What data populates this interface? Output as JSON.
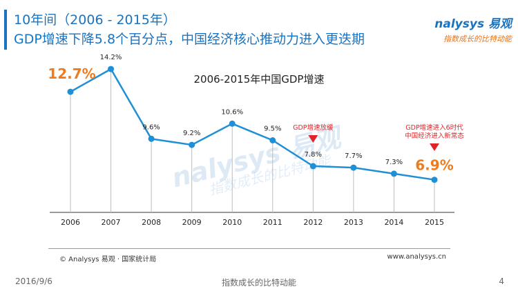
{
  "header": {
    "title_line1": "10年间（2006 - 2015年）",
    "title_line2": "GDP增速下降5.8个百分点，中国经济核心推动力进入更迭期",
    "logo_main": "nalysys 易观",
    "logo_sub": "指数成长的比特动能"
  },
  "watermark": {
    "main": "nalysys 易观",
    "sub": "指数成长的比特动能"
  },
  "chart_data": {
    "type": "line",
    "title": "2006-2015年中国GDP增速",
    "categories": [
      "2006",
      "2007",
      "2008",
      "2009",
      "2010",
      "2011",
      "2012",
      "2013",
      "2014",
      "2015"
    ],
    "series": [
      {
        "values": [
          12.7,
          14.2,
          9.6,
          9.2,
          10.6,
          9.5,
          7.8,
          7.7,
          7.3,
          6.9
        ]
      }
    ],
    "data_labels": [
      "12.7%",
      "14.2%",
      "9.6%",
      "9.2%",
      "10.6%",
      "9.5%",
      "7.8%",
      "7.7%",
      "7.3%",
      "6.9%"
    ],
    "highlight_labels": [
      0,
      9
    ],
    "annotations": [
      {
        "category": "2012",
        "lines": [
          "GDP增速放缓"
        ],
        "color": "#e0242b"
      },
      {
        "category": "2015",
        "lines": [
          "GDP增速进入6时代",
          "中国经济进入新常态"
        ],
        "color": "#e0242b"
      }
    ],
    "colors": {
      "line": "#1f8fd6",
      "highlight": "#f07b1d",
      "axis": "#333333",
      "drop": "#bbbbbb"
    }
  },
  "footer": {
    "source": "© Analysys 易观 · 国家统计局",
    "site": "www.analysys.cn",
    "date": "2016/9/6",
    "slogan": "指数成长的比特动能",
    "page": "4"
  }
}
